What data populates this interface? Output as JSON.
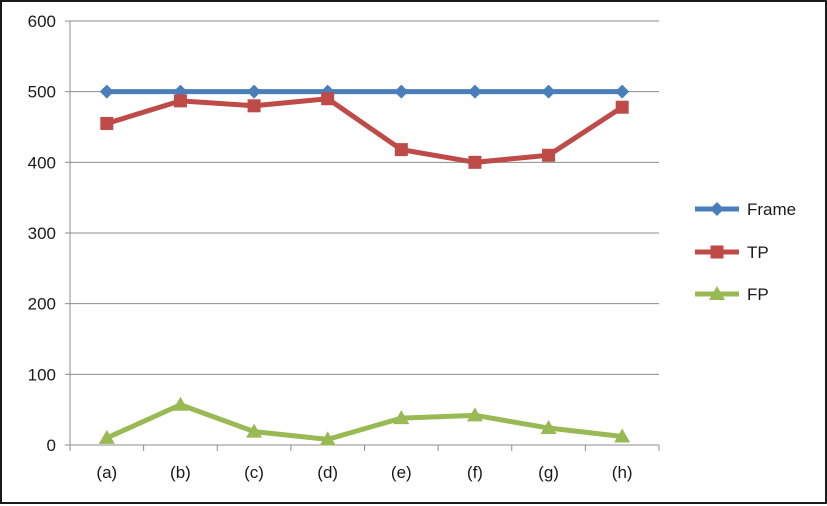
{
  "chart_data": {
    "type": "line",
    "categories": [
      "(a)",
      "(b)",
      "(c)",
      "(d)",
      "(e)",
      "(f)",
      "(g)",
      "(h)"
    ],
    "ylim": [
      0,
      600
    ],
    "yticks": [
      "0",
      "100",
      "200",
      "300",
      "400",
      "500",
      "600"
    ],
    "grid": "horizontal",
    "legend_position": "right",
    "series": [
      {
        "name": "Frame",
        "color": "#4a7ebb",
        "marker": "diamond",
        "values": [
          500,
          500,
          500,
          500,
          500,
          500,
          500,
          500
        ]
      },
      {
        "name": "TP",
        "color": "#be4b48",
        "marker": "square",
        "values": [
          455,
          487,
          480,
          490,
          418,
          400,
          410,
          478
        ]
      },
      {
        "name": "FP",
        "color": "#98b954",
        "marker": "triangle",
        "values": [
          10,
          57,
          19,
          8,
          38,
          42,
          24,
          12
        ]
      }
    ]
  }
}
